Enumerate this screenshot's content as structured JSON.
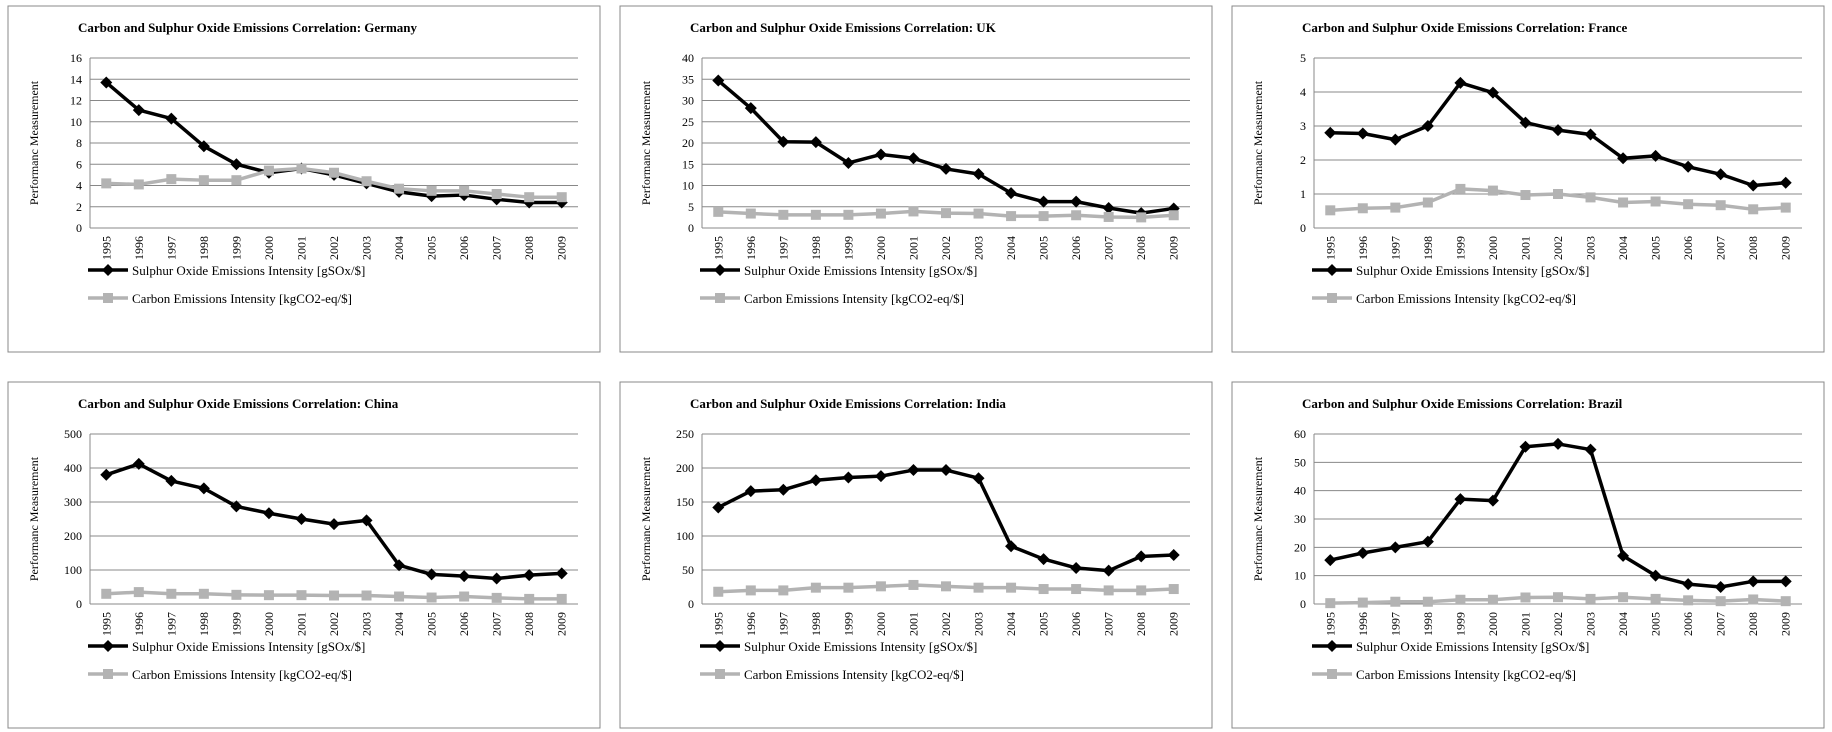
{
  "chart_data": [
    {
      "type": "line",
      "title": "Carbon and Sulphur Oxide Emissions  Correlation: Germany",
      "y_label": "Performanc  Measurement",
      "categories": [
        "1995",
        "1996",
        "1997",
        "1998",
        "1999",
        "2000",
        "2001",
        "2002",
        "2003",
        "2004",
        "2005",
        "2006",
        "2007",
        "2008",
        "2009"
      ],
      "series": [
        {
          "name": "Sulphur Oxide Emissions Intensity [gSOx/$]",
          "color": "#000000",
          "marker": "diamond",
          "values": [
            13.7,
            11.1,
            10.3,
            7.7,
            6.0,
            5.2,
            5.6,
            5.0,
            4.2,
            3.4,
            3.0,
            3.1,
            2.7,
            2.4,
            2.4
          ]
        },
        {
          "name": "Carbon Emissions Intensity [kgCO2-eq/$]",
          "color": "#b3b3b3",
          "marker": "square",
          "values": [
            4.2,
            4.1,
            4.6,
            4.5,
            4.5,
            5.4,
            5.6,
            5.2,
            4.4,
            3.7,
            3.5,
            3.5,
            3.2,
            2.9,
            2.9
          ]
        }
      ],
      "ylim": [
        0,
        16
      ],
      "yticks": [
        0,
        2,
        4,
        6,
        8,
        10,
        12,
        14,
        16
      ],
      "grid": true
    },
    {
      "type": "line",
      "title": "Carbon and Sulphur Oxide Emissions  Correlation: UK",
      "y_label": "Performanc  Measurement",
      "categories": [
        "1995",
        "1996",
        "1997",
        "1998",
        "1999",
        "2000",
        "2001",
        "2002",
        "2003",
        "2004",
        "2005",
        "2006",
        "2007",
        "2008",
        "2009"
      ],
      "series": [
        {
          "name": "Sulphur Oxide Emissions Intensity [gSOx/$]",
          "color": "#000000",
          "marker": "diamond",
          "values": [
            34.7,
            28.2,
            20.3,
            20.2,
            15.3,
            17.3,
            16.4,
            13.9,
            12.7,
            8.2,
            6.2,
            6.2,
            4.7,
            3.5,
            4.6
          ]
        },
        {
          "name": "Carbon Emissions Intensity [kgCO2-eq/$]",
          "color": "#b3b3b3",
          "marker": "square",
          "values": [
            3.8,
            3.4,
            3.1,
            3.1,
            3.1,
            3.4,
            3.9,
            3.5,
            3.4,
            2.8,
            2.8,
            3.0,
            2.6,
            2.5,
            3.0
          ]
        }
      ],
      "ylim": [
        0,
        40
      ],
      "yticks": [
        0,
        5,
        10,
        15,
        20,
        25,
        30,
        35,
        40
      ],
      "grid": true
    },
    {
      "type": "line",
      "title": "Carbon and Sulphur Oxide Emissions  Correlation: France",
      "y_label": "Performanc  Measurement",
      "categories": [
        "1995",
        "1996",
        "1997",
        "1998",
        "1999",
        "2000",
        "2001",
        "2002",
        "2003",
        "2004",
        "2005",
        "2006",
        "2007",
        "2008",
        "2009"
      ],
      "series": [
        {
          "name": "Sulphur Oxide Emissions Intensity [gSOx/$]",
          "color": "#000000",
          "marker": "diamond",
          "values": [
            2.8,
            2.78,
            2.6,
            3.0,
            4.27,
            3.98,
            3.1,
            2.88,
            2.75,
            2.05,
            2.12,
            1.8,
            1.58,
            1.25,
            1.33
          ]
        },
        {
          "name": "Carbon Emissions Intensity [kgCO2-eq/$]",
          "color": "#b3b3b3",
          "marker": "square",
          "values": [
            0.52,
            0.58,
            0.6,
            0.75,
            1.15,
            1.1,
            0.97,
            1.0,
            0.9,
            0.75,
            0.78,
            0.7,
            0.67,
            0.55,
            0.6
          ]
        }
      ],
      "ylim": [
        0,
        5
      ],
      "yticks": [
        0,
        1,
        2,
        3,
        4,
        5
      ],
      "grid": true
    },
    {
      "type": "line",
      "title": "Carbon and Sulphur Oxide Emissions  Correlation: China",
      "y_label": "Performanc  Measurement",
      "categories": [
        "1995",
        "1996",
        "1997",
        "1998",
        "1999",
        "2000",
        "2001",
        "2002",
        "2003",
        "2004",
        "2005",
        "2006",
        "2007",
        "2008",
        "2009"
      ],
      "series": [
        {
          "name": "Sulphur Oxide Emissions Intensity [gSOx/$]",
          "color": "#000000",
          "marker": "diamond",
          "values": [
            380,
            412,
            362,
            340,
            287,
            267,
            250,
            235,
            246,
            114,
            87,
            82,
            75,
            85,
            90
          ]
        },
        {
          "name": "Carbon Emissions Intensity [kgCO2-eq/$]",
          "color": "#b3b3b3",
          "marker": "square",
          "values": [
            30,
            35,
            30,
            30,
            27,
            26,
            26,
            25,
            25,
            22,
            19,
            22,
            18,
            15,
            15
          ]
        }
      ],
      "ylim": [
        0,
        500
      ],
      "yticks": [
        0,
        100,
        200,
        300,
        400,
        500
      ],
      "grid": true
    },
    {
      "type": "line",
      "title": "Carbon and Sulphur Oxide Emissions  Correlation: India",
      "y_label": "Performanc  Measurement",
      "categories": [
        "1995",
        "1996",
        "1997",
        "1998",
        "1999",
        "2000",
        "2001",
        "2002",
        "2003",
        "2004",
        "2005",
        "2006",
        "2007",
        "2008",
        "2009"
      ],
      "series": [
        {
          "name": "Sulphur Oxide Emissions Intensity [gSOx/$]",
          "color": "#000000",
          "marker": "diamond",
          "values": [
            142,
            166,
            168,
            182,
            186,
            188,
            197,
            197,
            185,
            85,
            66,
            53,
            49,
            70,
            72
          ]
        },
        {
          "name": "Carbon Emissions Intensity [kgCO2-eq/$]",
          "color": "#b3b3b3",
          "marker": "square",
          "values": [
            18,
            20,
            20,
            24,
            24,
            26,
            28,
            26,
            24,
            24,
            22,
            22,
            20,
            20,
            22
          ]
        }
      ],
      "ylim": [
        0,
        250
      ],
      "yticks": [
        0,
        50,
        100,
        150,
        200,
        250
      ],
      "grid": true
    },
    {
      "type": "line",
      "title": "Carbon and Sulphur Oxide Emissions  Correlation: Brazil",
      "y_label": "Performanc  Measurement",
      "categories": [
        "1995",
        "1996",
        "1997",
        "1998",
        "1999",
        "2000",
        "2001",
        "2002",
        "2003",
        "2004",
        "2005",
        "2006",
        "2007",
        "2008",
        "2009"
      ],
      "series": [
        {
          "name": "Sulphur Oxide Emissions Intensity [gSOx/$]",
          "color": "#000000",
          "marker": "diamond",
          "values": [
            15.5,
            18,
            20,
            22,
            37,
            36.5,
            55.5,
            56.5,
            54.5,
            17,
            10,
            7,
            6,
            8,
            8
          ]
        },
        {
          "name": "Carbon Emissions Intensity [kgCO2-eq/$]",
          "color": "#b3b3b3",
          "marker": "square",
          "values": [
            0.3,
            0.5,
            0.8,
            0.8,
            1.5,
            1.5,
            2.3,
            2.4,
            1.8,
            2.4,
            1.8,
            1.3,
            1.0,
            1.6,
            1.0
          ]
        }
      ],
      "ylim": [
        0,
        60
      ],
      "yticks": [
        0,
        10,
        20,
        30,
        40,
        50,
        60
      ],
      "grid": true
    }
  ]
}
